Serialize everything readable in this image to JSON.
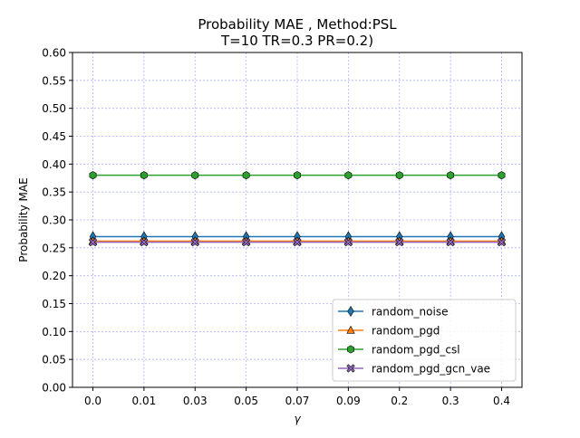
{
  "chart_data": {
    "type": "line",
    "title_line1": "Probability MAE , Method:PSL",
    "title_line2": "T=10 TR=0.3 PR=0.2)",
    "xlabel": "γ",
    "ylabel": "Probability MAE",
    "categories": [
      "0.0",
      "0.01",
      "0.03",
      "0.05",
      "0.07",
      "0.09",
      "0.2",
      "0.3",
      "0.4"
    ],
    "ylim": [
      0.0,
      0.6
    ],
    "yticks": [
      "0.00",
      "0.05",
      "0.10",
      "0.15",
      "0.20",
      "0.25",
      "0.30",
      "0.35",
      "0.40",
      "0.45",
      "0.50",
      "0.55",
      "0.60"
    ],
    "grid": true,
    "legend_position": "bottom-right",
    "series": [
      {
        "name": "random_noise",
        "color": "#1f77b4",
        "marker": "diamond",
        "values": [
          0.27,
          0.27,
          0.27,
          0.27,
          0.27,
          0.27,
          0.27,
          0.27,
          0.27
        ]
      },
      {
        "name": "random_pgd",
        "color": "#ff7f0e",
        "marker": "triangle",
        "values": [
          0.262,
          0.262,
          0.262,
          0.262,
          0.262,
          0.262,
          0.262,
          0.262,
          0.262
        ]
      },
      {
        "name": "random_pgd_csl",
        "color": "#2ca02c",
        "marker": "hexagon",
        "values": [
          0.38,
          0.38,
          0.38,
          0.38,
          0.38,
          0.38,
          0.38,
          0.38,
          0.38
        ]
      },
      {
        "name": "random_pgd_gcn_vae",
        "color": "#9467bd",
        "marker": "x",
        "values": [
          0.26,
          0.26,
          0.26,
          0.26,
          0.26,
          0.26,
          0.26,
          0.26,
          0.26
        ]
      }
    ]
  }
}
